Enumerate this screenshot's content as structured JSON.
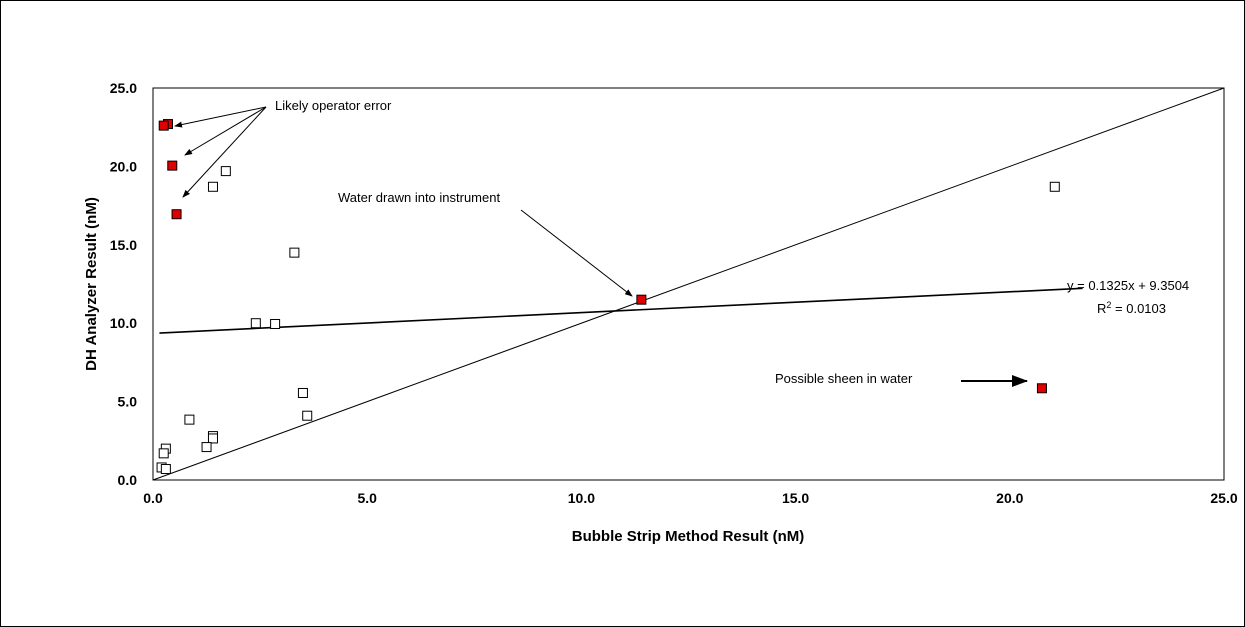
{
  "chart_data": {
    "type": "scatter",
    "xlabel": "Bubble Strip Method Result  (nM)",
    "ylabel": "DH Analyzer Result (nM)",
    "xlim": [
      0,
      25
    ],
    "ylim": [
      0,
      25
    ],
    "x_ticks": [
      "0.0",
      "5.0",
      "10.0",
      "15.0",
      "20.0",
      "25.0"
    ],
    "y_ticks": [
      "0.0",
      "5.0",
      "10.0",
      "15.0",
      "20.0",
      "25.0"
    ],
    "grid": false,
    "series": [
      {
        "marker": "open-square",
        "color": "#ffffff",
        "points": [
          [
            1.7,
            19.7
          ],
          [
            1.4,
            18.7
          ],
          [
            3.3,
            14.5
          ],
          [
            2.4,
            10.0
          ],
          [
            2.85,
            9.95
          ],
          [
            3.5,
            5.55
          ],
          [
            3.6,
            4.1
          ],
          [
            0.85,
            3.85
          ],
          [
            1.4,
            2.8
          ],
          [
            1.4,
            2.65
          ],
          [
            1.25,
            2.1
          ],
          [
            0.3,
            2.0
          ],
          [
            0.25,
            1.7
          ],
          [
            0.2,
            0.8
          ],
          [
            0.3,
            0.7
          ],
          [
            21.05,
            18.7
          ]
        ]
      },
      {
        "marker": "filled-square",
        "color": "#e00000",
        "points": [
          [
            0.35,
            22.7
          ],
          [
            0.25,
            22.6
          ],
          [
            0.45,
            20.05
          ],
          [
            0.55,
            16.95
          ],
          [
            11.4,
            11.5
          ],
          [
            20.75,
            5.85
          ]
        ]
      }
    ],
    "lines": [
      {
        "kind": "one-to-one",
        "from": [
          0,
          0
        ],
        "to": [
          25,
          25
        ]
      },
      {
        "kind": "trendline",
        "slope": 0.1325,
        "intercept": 9.3504,
        "x_range": [
          0.15,
          21.7
        ]
      }
    ],
    "annotations": {
      "operator_error": "Likely operator error",
      "water_drawn": "Water drawn into instrument",
      "sheen": "Possible sheen in water",
      "equation": "y = 0.1325x + 9.3504",
      "r2_prefix": "R",
      "r2_sup": "2",
      "r2_suffix": " = 0.0103"
    }
  }
}
